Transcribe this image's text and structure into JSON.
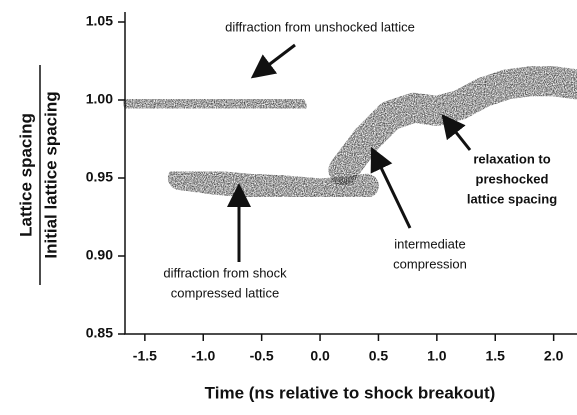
{
  "chart_data": {
    "type": "line",
    "xlabel": "Time (ns relative to shock breakout)",
    "ylabel": [
      "Lattice spacing",
      "Initial lattice spacing"
    ],
    "xlim": [
      -1.67,
      2.2
    ],
    "ylim": [
      0.85,
      1.05
    ],
    "xticks": [
      {
        "value": -1.5,
        "label": "-1.5"
      },
      {
        "value": -1,
        "label": "-1.0"
      },
      {
        "value": -0.5,
        "label": "-0.5"
      },
      {
        "value": 0,
        "label": "0.0"
      },
      {
        "value": 0.5,
        "label": "0.5"
      },
      {
        "value": 1,
        "label": "1.0"
      },
      {
        "value": 1.5,
        "label": "1.5"
      },
      {
        "value": 2,
        "label": "2.0"
      }
    ],
    "yticks": [
      0.85,
      {
        "value": 0.9,
        "label": "0.90"
      },
      0.95,
      {
        "value": 1,
        "label": "1.00"
      },
      1.05
    ],
    "color": "#262626",
    "series": [
      {
        "x": [
          -1.6,
          -1.3,
          -1.0,
          -0.7,
          -0.4,
          -0.2
        ],
        "values": [
          0.998,
          0.999,
          0.999,
          0.998,
          0.997,
          0.996
        ]
      },
      {
        "x": [
          -1.2,
          -0.9,
          -0.6,
          -0.3,
          0.0,
          0.2,
          0.4
        ],
        "values": [
          0.95,
          0.947,
          0.945,
          0.944,
          0.942,
          0.943,
          0.945
        ]
      },
      {
        "x": [
          0.2,
          0.4,
          0.6,
          0.8,
          1.0,
          1.2,
          1.4,
          1.6,
          1.8,
          2.0,
          2.2
        ],
        "values": [
          0.955,
          0.975,
          0.99,
          0.995,
          0.993,
          0.997,
          1.005,
          1.01,
          1.012,
          1.012,
          1.01
        ]
      }
    ],
    "annotations": [
      {
        "lines": [
          "diffraction from unshocked lattice"
        ]
      },
      {
        "lines": [
          "relaxation to",
          "preshocked",
          "lattice spacing"
        ]
      },
      {
        "lines": [
          "intermediate",
          "compression"
        ]
      },
      {
        "lines": [
          "diffraction from shock",
          "compressed lattice"
        ]
      }
    ]
  }
}
